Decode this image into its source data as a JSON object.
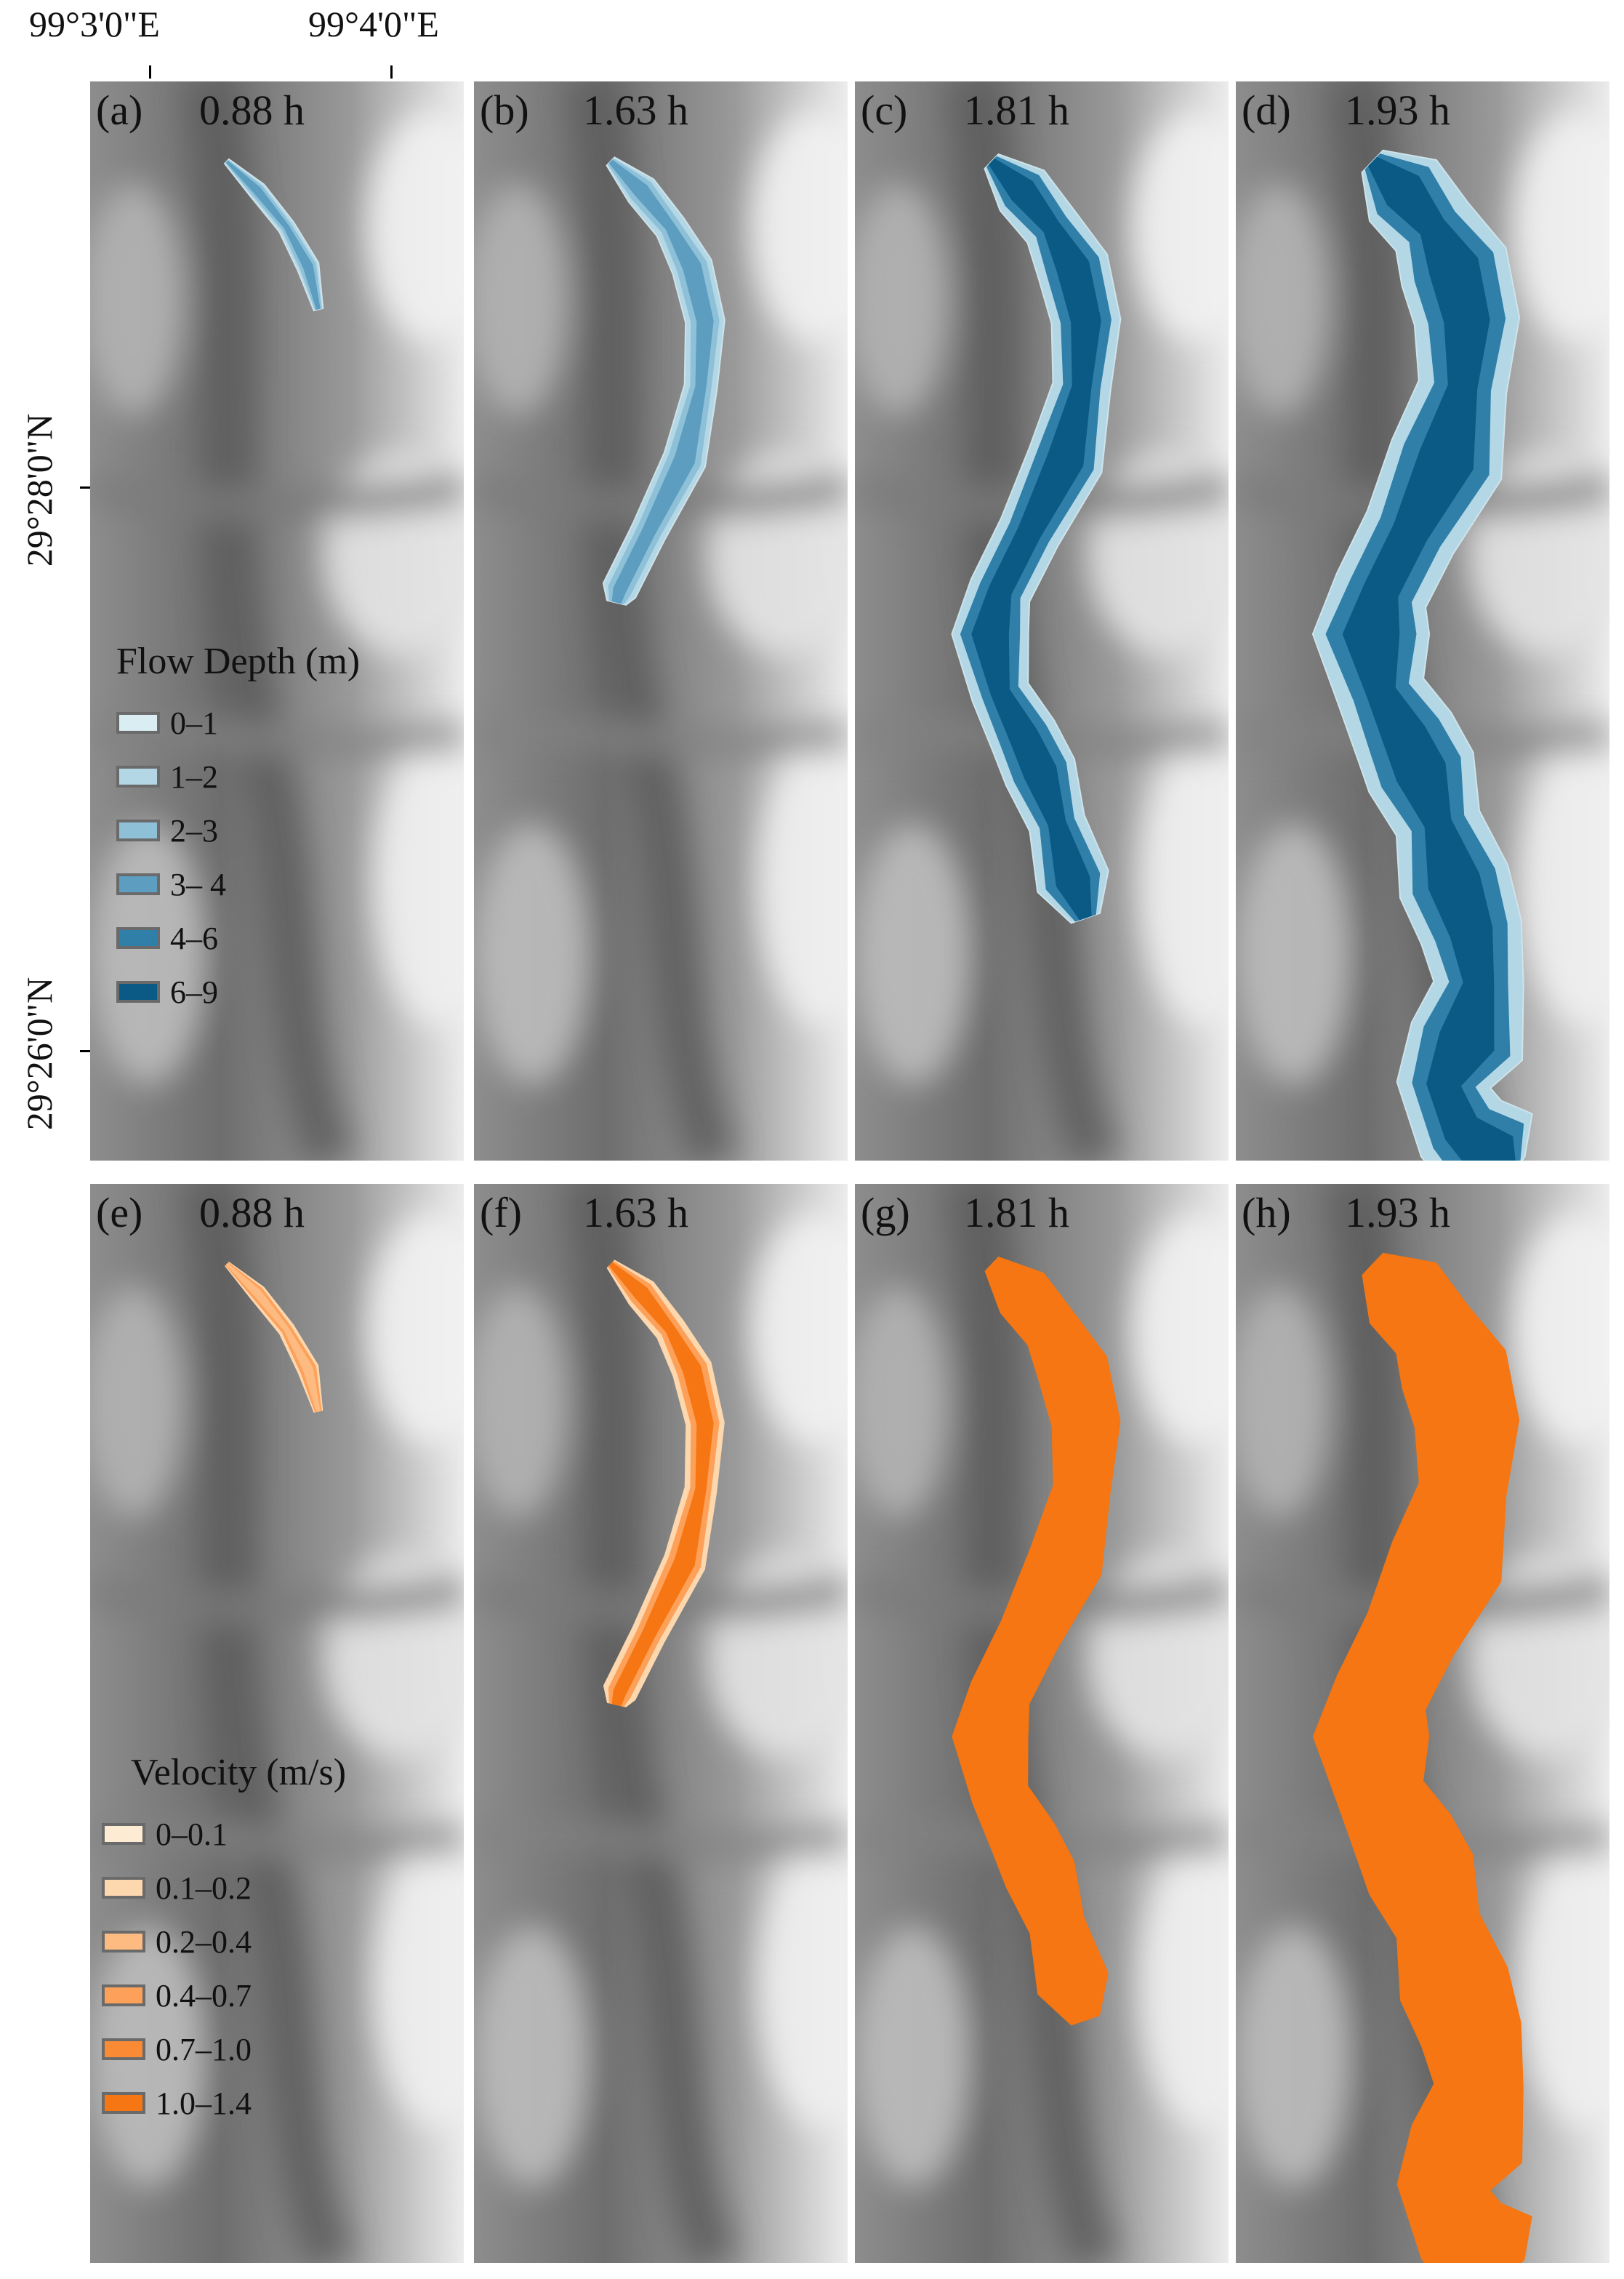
{
  "axes": {
    "lon_labels": [
      "99°3'0\"E",
      "99°4'0\"E"
    ],
    "lat_labels": [
      "29°28'0\"N",
      "29°26'0\"N"
    ]
  },
  "panels": [
    {
      "id": "a",
      "letter": "(a)",
      "time": "0.88 h",
      "variable": "depth",
      "stage": 0
    },
    {
      "id": "b",
      "letter": "(b)",
      "time": "1.63 h",
      "variable": "depth",
      "stage": 1
    },
    {
      "id": "c",
      "letter": "(c)",
      "time": "1.81 h",
      "variable": "depth",
      "stage": 2
    },
    {
      "id": "d",
      "letter": "(d)",
      "time": "1.93 h",
      "variable": "depth",
      "stage": 3
    },
    {
      "id": "e",
      "letter": "(e)",
      "time": "0.88 h",
      "variable": "velocity",
      "stage": 0
    },
    {
      "id": "f",
      "letter": "(f)",
      "time": "1.63 h",
      "variable": "velocity",
      "stage": 1
    },
    {
      "id": "g",
      "letter": "(g)",
      "time": "1.81 h",
      "variable": "velocity",
      "stage": 2
    },
    {
      "id": "h",
      "letter": "(h)",
      "time": "1.93 h",
      "variable": "velocity",
      "stage": 3
    }
  ],
  "legends": {
    "depth": {
      "title": "Flow Depth (m)",
      "items": [
        {
          "label": "0–1",
          "color": "#d9edf3"
        },
        {
          "label": "1–2",
          "color": "#b4d7e6"
        },
        {
          "label": "2–3",
          "color": "#8ec0d8"
        },
        {
          "label": "3– 4",
          "color": "#5c9dc0"
        },
        {
          "label": "4–6",
          "color": "#2f7fa9"
        },
        {
          "label": "6–9",
          "color": "#0b5a86"
        }
      ]
    },
    "velocity": {
      "title": "Velocity (m/s)",
      "items": [
        {
          "label": "0–0.1",
          "color": "#fdebd3"
        },
        {
          "label": "0.1–0.2",
          "color": "#fdd7ae"
        },
        {
          "label": "0.2–0.4",
          "color": "#fdbb82"
        },
        {
          "label": "0.4–0.7",
          "color": "#fda15a"
        },
        {
          "label": "0.7–1.0",
          "color": "#fb8a34"
        },
        {
          "label": "1.0–1.4",
          "color": "#f57612"
        }
      ]
    }
  },
  "colors": {
    "terrain_light": "#ececec",
    "terrain_dark": "#6e6e6e",
    "valley": "#5f5f5f"
  }
}
